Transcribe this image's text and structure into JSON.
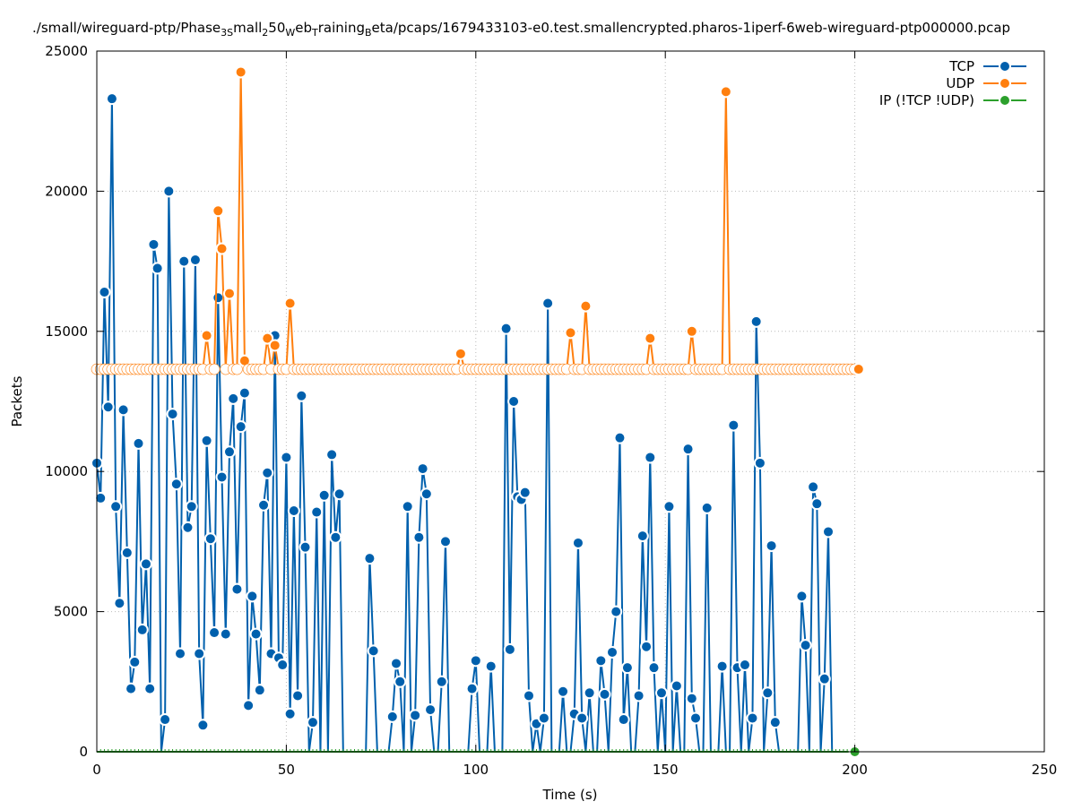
{
  "chart_data": {
    "type": "line",
    "title_segments": [
      {
        "text": "./small/wireguard-ptp/Phase",
        "sub": false
      },
      {
        "text": "3S",
        "sub": true
      },
      {
        "text": "mall",
        "sub": false
      },
      {
        "text": "2",
        "sub": true
      },
      {
        "text": "50",
        "sub": false
      },
      {
        "text": "W",
        "sub": true
      },
      {
        "text": "eb",
        "sub": false
      },
      {
        "text": "T",
        "sub": true
      },
      {
        "text": "raining",
        "sub": false
      },
      {
        "text": "B",
        "sub": true
      },
      {
        "text": "eta/pcaps/1679433103-e0.test.smallencrypted.pharos-1iperf-6web-wireguard-ptp000000.pcap",
        "sub": false
      }
    ],
    "xlabel": "Time (s)",
    "ylabel": "Packets",
    "xlim": [
      0,
      250
    ],
    "ylim": [
      0,
      25000
    ],
    "xticks": [
      "0",
      "50",
      "100",
      "150",
      "200",
      "250"
    ],
    "yticks": [
      "0",
      "5000",
      "10000",
      "15000",
      "20000",
      "25000"
    ],
    "grid": true,
    "legend_position": "top-right",
    "x_start": 0,
    "x_step": 1,
    "series": [
      {
        "name": "TCP",
        "color": "#0060ad",
        "values": [
          10300,
          9050,
          16400,
          12300,
          23300,
          8750,
          5300,
          12200,
          7100,
          2250,
          3200,
          11000,
          4350,
          6700,
          2250,
          18100,
          17250,
          0,
          1150,
          20000,
          12050,
          9550,
          3500,
          17500,
          8000,
          8750,
          17550,
          3500,
          950,
          11100,
          7600,
          4250,
          16200,
          9800,
          4200,
          10700,
          12600,
          5800,
          11600,
          12800,
          1650,
          5550,
          4200,
          2200,
          8800,
          9950,
          3500,
          14850,
          3350,
          3100,
          10500,
          1350,
          8600,
          2000,
          12700,
          7300,
          0,
          1050,
          8550,
          0,
          9150,
          0,
          10600,
          7650,
          9200,
          0,
          0,
          0,
          0,
          0,
          0,
          0,
          6900,
          3600,
          0,
          0,
          0,
          0,
          1250,
          3150,
          2500,
          0,
          8750,
          0,
          1300,
          7650,
          10100,
          9200,
          1500,
          0,
          0,
          2500,
          7500,
          0,
          0,
          0,
          0,
          0,
          0,
          2250,
          3250,
          0,
          0,
          0,
          3050,
          0,
          0,
          0,
          15100,
          3650,
          12500,
          9100,
          9000,
          9250,
          2000,
          0,
          1000,
          0,
          1200,
          16000,
          0,
          0,
          0,
          2150,
          0,
          0,
          1350,
          7450,
          1200,
          0,
          2100,
          0,
          0,
          3250,
          2050,
          0,
          3550,
          5000,
          11200,
          1150,
          3000,
          0,
          0,
          2000,
          7700,
          3750,
          10500,
          3000,
          0,
          2100,
          0,
          8750,
          0,
          2350,
          0,
          0,
          10800,
          1900,
          1200,
          0,
          0,
          8700,
          0,
          0,
          0,
          3050,
          0,
          0,
          11650,
          3000,
          0,
          3100,
          0,
          1200,
          15350,
          10300,
          0,
          2100,
          7350,
          1050,
          0,
          0,
          0,
          0,
          0,
          0,
          5550,
          3800,
          0,
          9450,
          8850,
          0,
          2600,
          7850,
          0,
          0,
          0,
          0,
          0,
          0,
          0
        ]
      },
      {
        "name": "UDP",
        "color": "#ff7f0e",
        "values": [
          13650,
          13650,
          13650,
          13650,
          13650,
          13650,
          13650,
          13650,
          13650,
          13650,
          13650,
          13650,
          13650,
          13650,
          13650,
          13650,
          13650,
          13650,
          13650,
          13650,
          13650,
          13650,
          13650,
          13650,
          13650,
          13650,
          13650,
          13650,
          13650,
          14850,
          13650,
          13650,
          19300,
          17950,
          13650,
          16350,
          13650,
          13650,
          24250,
          13950,
          13650,
          13650,
          13650,
          13650,
          13650,
          14750,
          13650,
          14500,
          13650,
          13650,
          13650,
          16000,
          13650,
          13650,
          13650,
          13650,
          13650,
          13650,
          13650,
          13650,
          13650,
          13650,
          13650,
          13650,
          13650,
          13650,
          13650,
          13650,
          13650,
          13650,
          13650,
          13650,
          13650,
          13650,
          13650,
          13650,
          13650,
          13650,
          13650,
          13650,
          13650,
          13650,
          13650,
          13650,
          13650,
          13650,
          13650,
          13650,
          13650,
          13650,
          13650,
          13650,
          13650,
          13650,
          13650,
          13650,
          14200,
          13650,
          13650,
          13650,
          13650,
          13650,
          13650,
          13650,
          13650,
          13650,
          13650,
          13650,
          13650,
          13650,
          13650,
          13650,
          13650,
          13650,
          13650,
          13650,
          13650,
          13650,
          13650,
          13650,
          13650,
          13650,
          13650,
          13650,
          13650,
          14950,
          13650,
          13650,
          13650,
          15900,
          13650,
          13650,
          13650,
          13650,
          13650,
          13650,
          13650,
          13650,
          13650,
          13650,
          13650,
          13650,
          13650,
          13650,
          13650,
          13650,
          14750,
          13650,
          13650,
          13650,
          13650,
          13650,
          13650,
          13650,
          13650,
          13650,
          13650,
          15000,
          13650,
          13650,
          13650,
          13650,
          13650,
          13650,
          13650,
          13650,
          23550,
          13650,
          13650,
          13650,
          13650,
          13650,
          13650,
          13650,
          13650,
          13650,
          13650,
          13650,
          13650,
          13650,
          13650,
          13650,
          13650,
          13650,
          13650,
          13650,
          13650,
          13650,
          13650,
          13650,
          13650,
          13650,
          13650,
          13650,
          13650,
          13650,
          13650,
          13650,
          13650,
          13650,
          13650,
          13650
        ]
      },
      {
        "name": "IP (!TCP  !UDP)",
        "color": "#2ca02c",
        "values": [
          0,
          0,
          0,
          0,
          0,
          0,
          0,
          0,
          0,
          0,
          0,
          0,
          0,
          0,
          0,
          0,
          0,
          0,
          0,
          0,
          0,
          0,
          0,
          0,
          0,
          0,
          0,
          0,
          0,
          0,
          0,
          0,
          0,
          0,
          0,
          0,
          0,
          0,
          0,
          0,
          0,
          0,
          0,
          0,
          0,
          0,
          0,
          0,
          0,
          0,
          0,
          0,
          0,
          0,
          0,
          0,
          0,
          0,
          0,
          0,
          0,
          0,
          0,
          0,
          0,
          0,
          0,
          0,
          0,
          0,
          0,
          0,
          0,
          0,
          0,
          0,
          0,
          0,
          0,
          0,
          0,
          0,
          0,
          0,
          0,
          0,
          0,
          0,
          0,
          0,
          0,
          0,
          0,
          0,
          0,
          0,
          0,
          0,
          0,
          0,
          0,
          0,
          0,
          0,
          0,
          0,
          0,
          0,
          0,
          0,
          0,
          0,
          0,
          0,
          0,
          0,
          0,
          0,
          0,
          0,
          0,
          0,
          0,
          0,
          0,
          0,
          0,
          0,
          0,
          0,
          0,
          0,
          0,
          0,
          0,
          0,
          0,
          0,
          0,
          0,
          0,
          0,
          0,
          0,
          0,
          0,
          0,
          0,
          0,
          0,
          0,
          0,
          0,
          0,
          0,
          0,
          0,
          0,
          0,
          0,
          0,
          0,
          0,
          0,
          0,
          0,
          0,
          0,
          0,
          0,
          0,
          0,
          0,
          0,
          0,
          0,
          0,
          0,
          0,
          0,
          0,
          0,
          0,
          0,
          0,
          0,
          0,
          0,
          0,
          0,
          0,
          0,
          0,
          0,
          0,
          0,
          0,
          0,
          0,
          0,
          0
        ]
      }
    ]
  }
}
